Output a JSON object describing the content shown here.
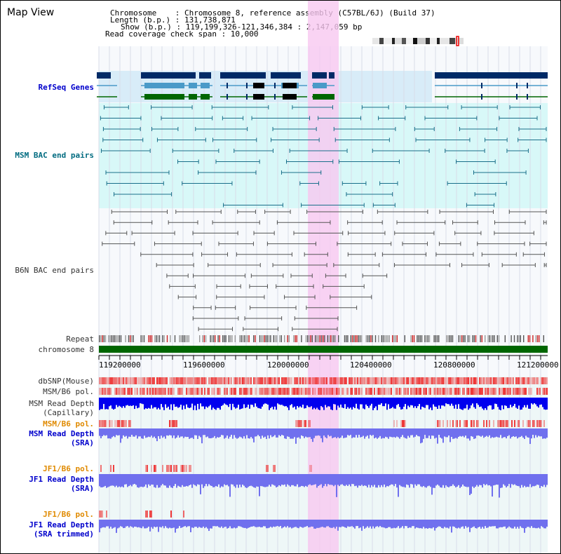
{
  "header": {
    "title": "Map View",
    "chromosome_line": "Chromosome    : Chromosome 8, reference assembly (C57BL/6J) (Build 37)",
    "length_line": "Length (b.p.) : 131,738,871",
    "show_line": "Show (b.p.) : 119,199,326-121,346,384 : 2,147,059 bp",
    "coverage_line": "Read coverage check span : 10,000"
  },
  "tracks": {
    "refseq": "RefSeq Genes",
    "msm_bac": "MSM BAC end pairs",
    "b6n_bac": "B6N BAC end pairs",
    "repeat": "Repeat",
    "chromosome": "chromosome 8",
    "dbsnp": "dbSNP(Mouse)",
    "msm_b6_pol_1": "MSM/B6 pol.",
    "msm_read_depth_cap_1": "MSM Read Depth",
    "msm_read_depth_cap_2": "(Capillary)",
    "msm_b6_pol_2": "MSM/B6 pol.",
    "msm_read_depth_sra_1": "MSM Read Depth",
    "msm_read_depth_sra_2": "(SRA)",
    "jf1_b6_pol_1": "JF1/B6 pol.",
    "jf1_read_depth_sra_1": "JF1 Read Depth",
    "jf1_read_depth_sra_2": "(SRA)",
    "jf1_b6_pol_2": "JF1/B6 pol.",
    "jf1_read_depth_trim_1": "JF1 Read Depth",
    "jf1_read_depth_trim_2": "(SRA trimmed)"
  },
  "axis": {
    "ticks": [
      "119200000",
      "119600000",
      "120000000",
      "120400000",
      "120800000",
      "121200000"
    ]
  },
  "colors": {
    "highlight": "#f8c8f0",
    "refseq_bg": "#d8ecf8",
    "bac_bg": "#d8f8f8",
    "chromosome": "#006600",
    "gene_dark": "#002a66",
    "gene_mid": "#4a9ac8",
    "gene_green": "#006600",
    "msm_pair": "#1a6f8a",
    "b6n_pair": "#555555",
    "depth_blue": "#0000ee",
    "depth_light": "#7070ee"
  }
}
